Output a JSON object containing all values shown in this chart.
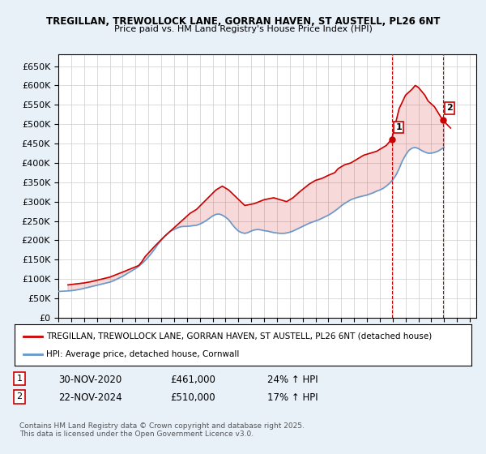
{
  "title_line1": "TREGILLAN, TREWOLLOCK LANE, GORRAN HAVEN, ST AUSTELL, PL26 6NT",
  "title_line2": "Price paid vs. HM Land Registry's House Price Index (HPI)",
  "ylabel": "",
  "xlabel": "",
  "ylim": [
    0,
    680000
  ],
  "xlim_start": 1995.0,
  "xlim_end": 2027.5,
  "yticks": [
    0,
    50000,
    100000,
    150000,
    200000,
    250000,
    300000,
    350000,
    400000,
    450000,
    500000,
    550000,
    600000,
    650000
  ],
  "ytick_labels": [
    "£0",
    "£50K",
    "£100K",
    "£150K",
    "£200K",
    "£250K",
    "£300K",
    "£350K",
    "£400K",
    "£450K",
    "£500K",
    "£550K",
    "£600K",
    "£650K"
  ],
  "xticks": [
    1995,
    1996,
    1997,
    1998,
    1999,
    2000,
    2001,
    2002,
    2003,
    2004,
    2005,
    2006,
    2007,
    2008,
    2009,
    2010,
    2011,
    2012,
    2013,
    2014,
    2015,
    2016,
    2017,
    2018,
    2019,
    2020,
    2021,
    2022,
    2023,
    2024,
    2025,
    2026,
    2027
  ],
  "red_line_color": "#cc0000",
  "blue_line_color": "#6699cc",
  "background_color": "#e8f0f8",
  "plot_bg_color": "#ffffff",
  "grid_color": "#cccccc",
  "marker1_x": 2020.92,
  "marker1_y": 461000,
  "marker2_x": 2024.9,
  "marker2_y": 510000,
  "annotation1_label": "1",
  "annotation2_label": "2",
  "legend_red_label": "TREGILLAN, TREWOLLOCK LANE, GORRAN HAVEN, ST AUSTELL, PL26 6NT (detached house)",
  "legend_blue_label": "HPI: Average price, detached house, Cornwall",
  "table_row1": [
    "1",
    "30-NOV-2020",
    "£461,000",
    "24% ↑ HPI"
  ],
  "table_row2": [
    "2",
    "22-NOV-2024",
    "£510,000",
    "17% ↑ HPI"
  ],
  "footer_text": "Contains HM Land Registry data © Crown copyright and database right 2025.\nThis data is licensed under the Open Government Licence v3.0.",
  "hpi_years": [
    1995.0,
    1995.25,
    1995.5,
    1995.75,
    1996.0,
    1996.25,
    1996.5,
    1996.75,
    1997.0,
    1997.25,
    1997.5,
    1997.75,
    1998.0,
    1998.25,
    1998.5,
    1998.75,
    1999.0,
    1999.25,
    1999.5,
    1999.75,
    2000.0,
    2000.25,
    2000.5,
    2000.75,
    2001.0,
    2001.25,
    2001.5,
    2001.75,
    2002.0,
    2002.25,
    2002.5,
    2002.75,
    2003.0,
    2003.25,
    2003.5,
    2003.75,
    2004.0,
    2004.25,
    2004.5,
    2004.75,
    2005.0,
    2005.25,
    2005.5,
    2005.75,
    2006.0,
    2006.25,
    2006.5,
    2006.75,
    2007.0,
    2007.25,
    2007.5,
    2007.75,
    2008.0,
    2008.25,
    2008.5,
    2008.75,
    2009.0,
    2009.25,
    2009.5,
    2009.75,
    2010.0,
    2010.25,
    2010.5,
    2010.75,
    2011.0,
    2011.25,
    2011.5,
    2011.75,
    2012.0,
    2012.25,
    2012.5,
    2012.75,
    2013.0,
    2013.25,
    2013.5,
    2013.75,
    2014.0,
    2014.25,
    2014.5,
    2014.75,
    2015.0,
    2015.25,
    2015.5,
    2015.75,
    2016.0,
    2016.25,
    2016.5,
    2016.75,
    2017.0,
    2017.25,
    2017.5,
    2017.75,
    2018.0,
    2018.25,
    2018.5,
    2018.75,
    2019.0,
    2019.25,
    2019.5,
    2019.75,
    2020.0,
    2020.25,
    2020.5,
    2020.75,
    2021.0,
    2021.25,
    2021.5,
    2021.75,
    2022.0,
    2022.25,
    2022.5,
    2022.75,
    2023.0,
    2023.25,
    2023.5,
    2023.75,
    2024.0,
    2024.25,
    2024.5,
    2024.75,
    2025.0
  ],
  "hpi_values": [
    68000,
    68500,
    69000,
    69500,
    70000,
    71000,
    72500,
    74000,
    76000,
    78000,
    80000,
    82000,
    84000,
    86000,
    88000,
    90000,
    92000,
    95000,
    99000,
    103000,
    107000,
    112000,
    117000,
    122000,
    127000,
    133000,
    140000,
    148000,
    157000,
    167000,
    178000,
    190000,
    200000,
    210000,
    218000,
    224000,
    228000,
    232000,
    235000,
    236000,
    236000,
    237000,
    238000,
    239000,
    242000,
    246000,
    251000,
    257000,
    263000,
    267000,
    268000,
    265000,
    260000,
    253000,
    242000,
    232000,
    224000,
    220000,
    218000,
    220000,
    224000,
    227000,
    228000,
    227000,
    225000,
    224000,
    222000,
    220000,
    219000,
    218000,
    218000,
    219000,
    221000,
    224000,
    228000,
    232000,
    236000,
    240000,
    244000,
    247000,
    250000,
    253000,
    257000,
    261000,
    265000,
    270000,
    276000,
    282000,
    289000,
    295000,
    300000,
    305000,
    308000,
    311000,
    313000,
    315000,
    317000,
    320000,
    323000,
    327000,
    330000,
    334000,
    340000,
    347000,
    356000,
    368000,
    385000,
    405000,
    420000,
    432000,
    438000,
    440000,
    437000,
    432000,
    428000,
    425000,
    425000,
    427000,
    430000,
    435000,
    440000
  ],
  "red_years": [
    1995.75,
    1996.5,
    1997.0,
    1997.5,
    1998.0,
    1999.0,
    2000.0,
    2001.25,
    2001.5,
    2001.75,
    2002.5,
    2003.25,
    2004.75,
    2005.25,
    2005.75,
    2006.5,
    2007.25,
    2007.75,
    2008.25,
    2009.5,
    2010.25,
    2011.0,
    2011.75,
    2012.75,
    2013.25,
    2013.75,
    2014.5,
    2015.0,
    2015.5,
    2016.0,
    2016.5,
    2016.75,
    2017.25,
    2017.75,
    2018.0,
    2018.5,
    2018.75,
    2019.25,
    2019.75,
    2020.0,
    2020.5,
    2020.92,
    2021.5,
    2022.0,
    2022.5,
    2022.75,
    2023.0,
    2023.5,
    2023.75,
    2024.25,
    2024.9,
    2025.5
  ],
  "red_values": [
    85000,
    88000,
    90000,
    93000,
    97000,
    105000,
    118000,
    135000,
    145000,
    158000,
    185000,
    210000,
    255000,
    270000,
    280000,
    305000,
    330000,
    340000,
    330000,
    290000,
    295000,
    305000,
    310000,
    300000,
    310000,
    325000,
    345000,
    355000,
    360000,
    368000,
    375000,
    385000,
    395000,
    400000,
    405000,
    415000,
    420000,
    425000,
    430000,
    435000,
    445000,
    461000,
    540000,
    575000,
    590000,
    600000,
    595000,
    575000,
    560000,
    545000,
    510000,
    490000
  ]
}
